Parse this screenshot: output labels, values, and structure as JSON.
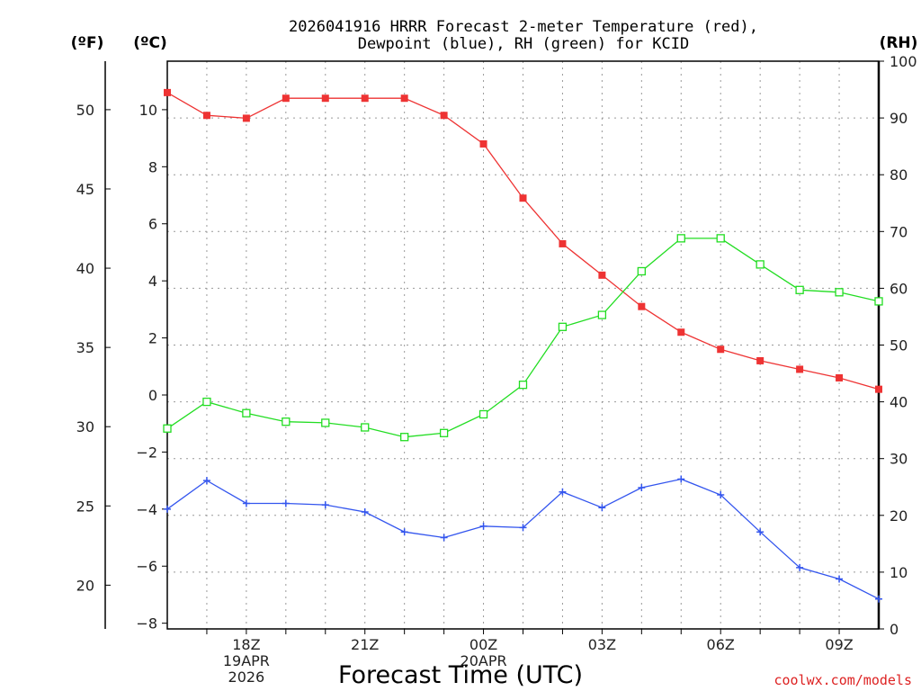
{
  "chart_data": {
    "type": "line",
    "title_line1": "2026041916 HRRR Forecast 2-meter Temperature (red),",
    "title_line2": "Dewpoint (blue), RH (green) for KCID",
    "unit_left_f": "(ºF)",
    "unit_left_c": "(ºC)",
    "unit_right": "(RH)",
    "xlabel": "Forecast Time (UTC)",
    "credit": "coolwx.com/models",
    "x_hours": [
      0,
      1,
      2,
      3,
      4,
      5,
      6,
      7,
      8,
      9,
      10,
      11,
      12,
      13,
      14,
      15,
      16,
      17,
      18
    ],
    "xlim": [
      0,
      18
    ],
    "ylim_c": [
      -8.2,
      11.7
    ],
    "ylim_rh": [
      0,
      100
    ],
    "ylim_f": [
      17.24,
      53.06
    ],
    "x_ticks": [
      {
        "hour": 2,
        "labels": [
          "18Z",
          "19APR",
          "2026"
        ]
      },
      {
        "hour": 5,
        "labels": [
          "21Z"
        ]
      },
      {
        "hour": 8,
        "labels": [
          "00Z",
          "20APR"
        ]
      },
      {
        "hour": 11,
        "labels": [
          "03Z"
        ]
      },
      {
        "hour": 14,
        "labels": [
          "06Z"
        ]
      },
      {
        "hour": 17,
        "labels": [
          "09Z"
        ]
      }
    ],
    "y_ticks_c": [
      "−8",
      "−6",
      "−4",
      "−2",
      "0",
      "2",
      "4",
      "6",
      "8",
      "10"
    ],
    "y_ticks_c_values": [
      -8,
      -6,
      -4,
      -2,
      0,
      2,
      4,
      6,
      8,
      10
    ],
    "y_ticks_f": [
      "20",
      "25",
      "30",
      "35",
      "40",
      "45",
      "50"
    ],
    "y_ticks_f_values": [
      20,
      25,
      30,
      35,
      40,
      45,
      50
    ],
    "y_ticks_rh": [
      "0",
      "10",
      "20",
      "30",
      "40",
      "50",
      "60",
      "70",
      "80",
      "90",
      "100"
    ],
    "y_ticks_rh_values": [
      0,
      10,
      20,
      30,
      40,
      50,
      60,
      70,
      80,
      90,
      100
    ],
    "series": [
      {
        "name": "Temperature",
        "axis": "C",
        "color": "#ee3333",
        "marker": "filled-square",
        "values": [
          10.6,
          9.8,
          9.7,
          10.4,
          10.4,
          10.4,
          10.4,
          9.8,
          8.8,
          6.9,
          5.3,
          4.2,
          3.1,
          2.2,
          1.6,
          1.2,
          0.9,
          0.6,
          0.2
        ]
      },
      {
        "name": "Dewpoint",
        "axis": "C",
        "color": "#3355ee",
        "marker": "plus",
        "values": [
          -4.0,
          -3.0,
          -3.8,
          -3.8,
          -3.85,
          -4.1,
          -4.8,
          -5.0,
          -4.6,
          -4.65,
          -3.4,
          -3.95,
          -3.25,
          -2.95,
          -3.5,
          -4.8,
          -6.05,
          -6.45,
          -7.15
        ]
      },
      {
        "name": "RH",
        "axis": "RH",
        "color": "#22dd22",
        "marker": "open-square",
        "values": [
          35.3,
          40.0,
          38.0,
          36.5,
          36.3,
          35.5,
          33.8,
          34.5,
          37.8,
          43.0,
          53.2,
          55.3,
          63.0,
          68.8,
          68.8,
          64.2,
          59.7,
          59.3,
          57.7
        ]
      }
    ]
  }
}
